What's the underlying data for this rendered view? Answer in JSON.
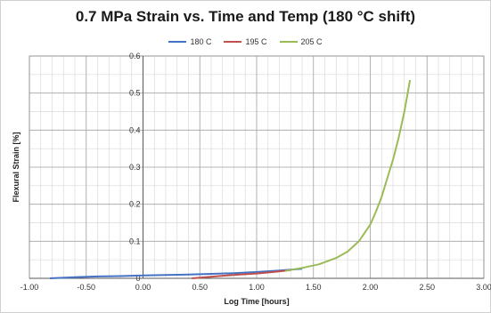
{
  "chart_data": {
    "type": "line",
    "title": "0.7 MPa Strain vs. Time and Temp (180 °C shift)",
    "xlabel": "Log Time [hours]",
    "ylabel": "Flexural Strain [%]",
    "xlim": [
      -1.0,
      3.0
    ],
    "ylim": [
      0,
      0.6
    ],
    "x_ticks": [
      -1.0,
      -0.5,
      0.0,
      0.5,
      1.0,
      1.5,
      2.0,
      2.5,
      3.0
    ],
    "x_tick_labels": [
      "-1.00",
      "-0.50",
      "0.00",
      "0.50",
      "1.00",
      "1.50",
      "2.00",
      "2.50",
      "3.00"
    ],
    "y_ticks": [
      0,
      0.1,
      0.2,
      0.3,
      0.4,
      0.5,
      0.6
    ],
    "y_tick_labels": [
      "0",
      "0.1",
      "0.2",
      "0.3",
      "0.4",
      "0.5",
      "0.6"
    ],
    "x_minor_step": 0.1,
    "y_minor_step": 0.05,
    "y_axis_at_x": 0.0,
    "grid": true,
    "legend_position": "top-center",
    "series": [
      {
        "name": "180 C",
        "color": "#4472c4",
        "x": [
          -0.82,
          -0.6,
          -0.4,
          -0.2,
          0.0,
          0.2,
          0.4,
          0.6,
          0.8,
          1.0,
          1.2,
          1.4
        ],
        "y": [
          0.0,
          0.003,
          0.005,
          0.006,
          0.008,
          0.009,
          0.01,
          0.012,
          0.014,
          0.017,
          0.021,
          0.026
        ]
      },
      {
        "name": "195 C",
        "color": "#c0504d",
        "x": [
          0.43,
          0.55,
          0.7,
          0.85,
          1.0,
          1.15,
          1.3
        ],
        "y": [
          0.0,
          0.003,
          0.007,
          0.01,
          0.013,
          0.017,
          0.022
        ]
      },
      {
        "name": "205 C",
        "color": "#9bbb59",
        "x": [
          1.25,
          1.4,
          1.55,
          1.7,
          1.8,
          1.9,
          2.0,
          2.05,
          2.1,
          2.15,
          2.2,
          2.25,
          2.3,
          2.35
        ],
        "y": [
          0.02,
          0.028,
          0.038,
          0.055,
          0.072,
          0.1,
          0.145,
          0.18,
          0.22,
          0.27,
          0.32,
          0.38,
          0.45,
          0.535
        ]
      }
    ]
  }
}
